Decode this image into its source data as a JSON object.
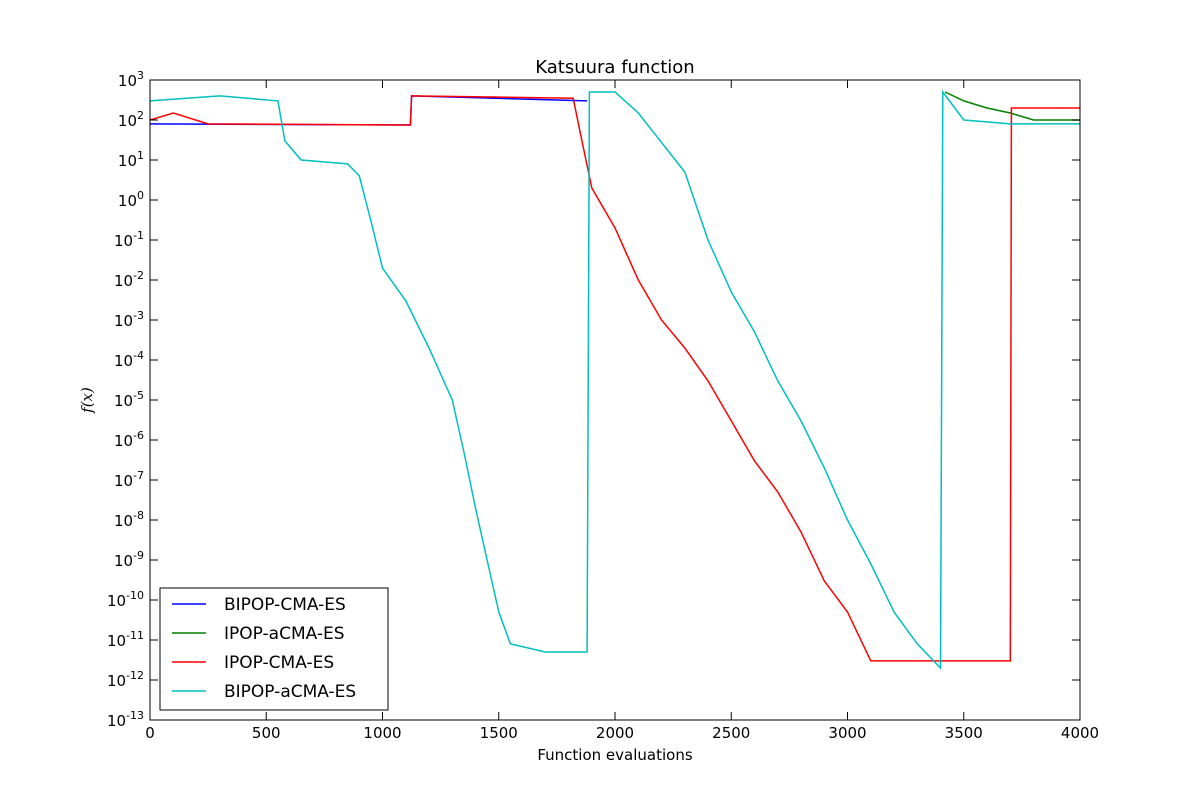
{
  "chart_data": {
    "type": "line",
    "title": "Katsuura function",
    "xlabel": "Function evaluations",
    "ylabel": "f(x)",
    "xlim": [
      0,
      4000
    ],
    "ylim": [
      1e-13,
      1000
    ],
    "yscale": "log",
    "x_ticks": [
      0,
      500,
      1000,
      1500,
      2000,
      2500,
      3000,
      3500,
      4000
    ],
    "y_tick_exponents": [
      -13,
      -12,
      -11,
      -10,
      -9,
      -8,
      -7,
      -6,
      -5,
      -4,
      -3,
      -2,
      -1,
      0,
      1,
      2,
      3
    ],
    "y_tick_base": "10",
    "grid": false,
    "legend_position": "lower-left",
    "series": [
      {
        "name": "BIPOP-CMA-ES",
        "color": "#0000ff",
        "points": [
          [
            0,
            80
          ],
          [
            1120,
            75
          ],
          [
            1125,
            400
          ],
          [
            1880,
            300
          ]
        ]
      },
      {
        "name": "IPOP-aCMA-ES",
        "color": "#008000",
        "points": [
          [
            3420,
            500
          ],
          [
            3500,
            300
          ],
          [
            3600,
            200
          ],
          [
            3700,
            150
          ],
          [
            3800,
            100
          ],
          [
            3900,
            100
          ],
          [
            4000,
            100
          ]
        ]
      },
      {
        "name": "IPOP-CMA-ES",
        "color": "#ff0000",
        "points": [
          [
            0,
            100
          ],
          [
            100,
            150
          ],
          [
            250,
            80
          ],
          [
            1120,
            75
          ],
          [
            1125,
            400
          ],
          [
            1820,
            350
          ],
          [
            1850,
            50
          ],
          [
            1900,
            2
          ],
          [
            2000,
            0.2
          ],
          [
            2100,
            0.01
          ],
          [
            2200,
            0.001
          ],
          [
            2300,
            0.0002
          ],
          [
            2400,
            3e-05
          ],
          [
            2500,
            3e-06
          ],
          [
            2600,
            3e-07
          ],
          [
            2700,
            5e-08
          ],
          [
            2800,
            5e-09
          ],
          [
            2900,
            3e-10
          ],
          [
            3000,
            5e-11
          ],
          [
            3100,
            3e-12
          ],
          [
            3300,
            3e-12
          ],
          [
            3500,
            3e-12
          ],
          [
            3700,
            3e-12
          ],
          [
            3705,
            200
          ],
          [
            4000,
            200
          ]
        ]
      },
      {
        "name": "BIPOP-aCMA-ES",
        "color": "#00bfbf",
        "points": [
          [
            0,
            300
          ],
          [
            300,
            400
          ],
          [
            550,
            300
          ],
          [
            580,
            30
          ],
          [
            650,
            10
          ],
          [
            850,
            8
          ],
          [
            900,
            4
          ],
          [
            950,
            0.3
          ],
          [
            1000,
            0.02
          ],
          [
            1100,
            0.003
          ],
          [
            1200,
            0.0002
          ],
          [
            1300,
            1e-05
          ],
          [
            1350,
            5e-07
          ],
          [
            1400,
            2e-08
          ],
          [
            1450,
            1e-09
          ],
          [
            1500,
            5e-11
          ],
          [
            1550,
            8e-12
          ],
          [
            1700,
            5e-12
          ],
          [
            1880,
            5e-12
          ],
          [
            1890,
            500
          ],
          [
            2000,
            500
          ],
          [
            2100,
            150
          ],
          [
            2300,
            5
          ],
          [
            2400,
            0.1
          ],
          [
            2500,
            0.005
          ],
          [
            2600,
            0.0005
          ],
          [
            2700,
            3e-05
          ],
          [
            2800,
            3e-06
          ],
          [
            2900,
            2e-07
          ],
          [
            3000,
            1e-08
          ],
          [
            3100,
            8e-10
          ],
          [
            3200,
            5e-11
          ],
          [
            3300,
            8e-12
          ],
          [
            3400,
            2e-12
          ],
          [
            3410,
            500
          ],
          [
            3500,
            100
          ],
          [
            3700,
            80
          ],
          [
            4000,
            80
          ]
        ]
      }
    ]
  }
}
